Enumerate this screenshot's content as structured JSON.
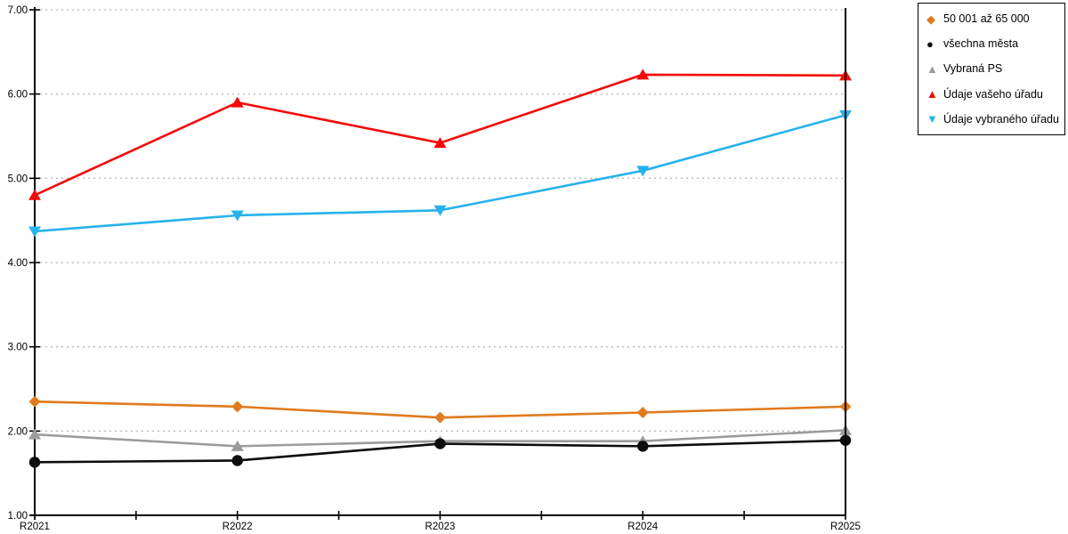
{
  "chart_data": {
    "type": "line",
    "title": "",
    "categories": [
      "R2021",
      "R2022",
      "R2023",
      "R2024",
      "R2025"
    ],
    "ylim": [
      1.0,
      7.0
    ],
    "ytick_step": 1.0,
    "ytick_labels": [
      "1.00",
      "2.00",
      "3.00",
      "4.00",
      "5.00",
      "6.00",
      "7.00"
    ],
    "grid": "horizontal-dotted",
    "legend_position": "outside-top-right",
    "series": [
      {
        "name": "50 001 až 65 000",
        "marker": "diamond",
        "color": "#E07B1E",
        "values": [
          2.35,
          2.29,
          2.16,
          2.22,
          2.29
        ]
      },
      {
        "name": "všechna města",
        "marker": "circle",
        "color": "#0D0D0D",
        "values": [
          1.63,
          1.65,
          1.85,
          1.82,
          1.89
        ]
      },
      {
        "name": "Vybraná PS",
        "marker": "triangle-up",
        "color": "#9B9B9B",
        "values": [
          1.96,
          1.82,
          1.88,
          1.88,
          2.01
        ]
      },
      {
        "name": "Údaje vašeho úřadu",
        "marker": "triangle-up",
        "color": "#F50A0A",
        "values": [
          4.8,
          5.9,
          5.42,
          6.23,
          6.22
        ]
      },
      {
        "name": "Údaje vybraného úřadu",
        "marker": "triangle-down",
        "color": "#27B2EC",
        "values": [
          4.37,
          4.56,
          4.62,
          5.09,
          5.75
        ]
      }
    ]
  },
  "colors": {
    "axis": "#000000",
    "grid": "#B9B9B9",
    "background": "#FFFFFF",
    "legend_border": "#000000"
  }
}
